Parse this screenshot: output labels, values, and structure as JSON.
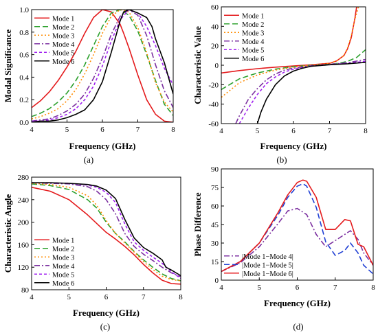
{
  "chart_data": [
    {
      "type": "line",
      "panel_label": "(a)",
      "xlabel": "Frequency (GHz)",
      "ylabel": "Modal Significance",
      "xlim": [
        4,
        8
      ],
      "ylim": [
        0,
        1.0
      ],
      "xticks": [
        4,
        5,
        6,
        7,
        8
      ],
      "yticks": [
        0.0,
        0.2,
        0.4,
        0.6,
        0.8,
        1.0
      ],
      "ytick_labels": [
        "0.0",
        "0.2",
        "0.4",
        "0.6",
        "0.8",
        "1.0"
      ],
      "legend_position": "top-left",
      "series": [
        {
          "name": "Mode 1",
          "color": "#e41a1c",
          "dash": "solid",
          "x": [
            4,
            4.25,
            4.5,
            4.75,
            5,
            5.25,
            5.5,
            5.75,
            6,
            6.25,
            6.5,
            6.6,
            6.75,
            7,
            7.25,
            7.5,
            7.75,
            8
          ],
          "y": [
            0.13,
            0.19,
            0.27,
            0.37,
            0.49,
            0.63,
            0.79,
            0.93,
            1.0,
            0.98,
            0.87,
            0.79,
            0.66,
            0.42,
            0.2,
            0.07,
            0.01,
            0.0
          ]
        },
        {
          "name": "Mode 2",
          "color": "#2ca02c",
          "dash": "8,4",
          "x": [
            4,
            4.25,
            4.5,
            4.75,
            5,
            5.25,
            5.5,
            5.75,
            6,
            6.25,
            6.5,
            6.75,
            7,
            7.25,
            7.5,
            7.75,
            8
          ],
          "y": [
            0.05,
            0.08,
            0.12,
            0.18,
            0.26,
            0.37,
            0.51,
            0.68,
            0.85,
            0.97,
            1.0,
            0.95,
            0.81,
            0.6,
            0.37,
            0.16,
            0.06
          ]
        },
        {
          "name": "Mode 3",
          "color": "#ff8c00",
          "dash": "2,3",
          "x": [
            4,
            4.25,
            4.5,
            4.75,
            5,
            5.25,
            5.5,
            5.75,
            6,
            6.25,
            6.5,
            6.75,
            7,
            7.25,
            7.5,
            7.75,
            8
          ],
          "y": [
            0.03,
            0.05,
            0.08,
            0.12,
            0.19,
            0.29,
            0.43,
            0.6,
            0.79,
            0.94,
            1.0,
            0.98,
            0.84,
            0.62,
            0.35,
            0.18,
            0.09
          ]
        },
        {
          "name": "Mode 4",
          "color": "#7b2fa0",
          "dash": "8,3,2,3",
          "x": [
            4,
            4.25,
            4.5,
            4.75,
            5,
            5.25,
            5.5,
            5.75,
            6,
            6.25,
            6.5,
            6.75,
            7,
            7.25,
            7.5,
            7.75,
            8
          ],
          "y": [
            0.01,
            0.02,
            0.03,
            0.06,
            0.1,
            0.16,
            0.25,
            0.39,
            0.57,
            0.78,
            0.94,
            1.0,
            0.95,
            0.77,
            0.51,
            0.28,
            0.13
          ]
        },
        {
          "name": "Mode 5",
          "color": "#a020f0",
          "dash": "4,3",
          "x": [
            4,
            4.25,
            4.5,
            4.75,
            5,
            5.25,
            5.5,
            5.75,
            6,
            6.25,
            6.5,
            6.75,
            7,
            7.25,
            7.5,
            7.75,
            8
          ],
          "y": [
            0.01,
            0.01,
            0.02,
            0.04,
            0.07,
            0.12,
            0.2,
            0.32,
            0.5,
            0.72,
            0.91,
            1.0,
            0.97,
            0.85,
            0.68,
            0.48,
            0.33
          ]
        },
        {
          "name": "Mode 6",
          "color": "#000000",
          "dash": "solid",
          "x": [
            4,
            4.25,
            4.5,
            4.75,
            5,
            5.25,
            5.5,
            5.75,
            6,
            6.25,
            6.5,
            6.6,
            6.75,
            7,
            7.25,
            7.4,
            7.5,
            7.75,
            8
          ],
          "y": [
            0.0,
            0.01,
            0.01,
            0.02,
            0.04,
            0.07,
            0.11,
            0.2,
            0.36,
            0.62,
            0.9,
            0.98,
            1.0,
            0.97,
            0.93,
            0.85,
            0.74,
            0.53,
            0.25
          ]
        }
      ]
    },
    {
      "type": "line",
      "panel_label": "(b)",
      "xlabel": "Frequency (GHz)",
      "ylabel": "Characteristic Value",
      "xlim": [
        4,
        8
      ],
      "ylim": [
        -60,
        60
      ],
      "xticks": [
        4,
        5,
        6,
        7,
        8
      ],
      "yticks": [
        -60,
        -40,
        -20,
        0,
        20,
        40,
        60
      ],
      "ytick_labels": [
        "-60",
        "-40",
        "-20",
        "0",
        "20",
        "40",
        "60"
      ],
      "legend_position": "top-left",
      "series": [
        {
          "name": "Mode 1",
          "color": "#e41a1c",
          "dash": "solid",
          "x": [
            4,
            4.5,
            5,
            5.5,
            6,
            6.5,
            7,
            7.2,
            7.4,
            7.5,
            7.6,
            7.7,
            7.75
          ],
          "y": [
            -8,
            -5.5,
            -3.5,
            -2,
            -0.8,
            0.5,
            2,
            4.5,
            10,
            17,
            28,
            48,
            60
          ]
        },
        {
          "name": "Mode 2",
          "color": "#2ca02c",
          "dash": "8,4",
          "x": [
            4,
            4.5,
            5,
            5.5,
            6,
            6.5,
            7,
            7.25,
            7.5,
            7.75,
            8
          ],
          "y": [
            -25,
            -14,
            -8,
            -4,
            -1.5,
            0,
            1,
            2,
            4,
            8,
            16
          ]
        },
        {
          "name": "Mode 3",
          "color": "#ff8c00",
          "dash": "2,3",
          "x": [
            4,
            4.5,
            5,
            5.5,
            6,
            6.5,
            7,
            7.2,
            7.4,
            7.5,
            7.6,
            7.7,
            7.8
          ],
          "y": [
            -33,
            -18,
            -10,
            -5,
            -2,
            0,
            2,
            4.5,
            10,
            18,
            30,
            47,
            60
          ]
        },
        {
          "name": "Mode 4",
          "color": "#7b2fa0",
          "dash": "8,3,2,3",
          "x": [
            4.4,
            4.5,
            4.75,
            5,
            5.25,
            5.5,
            5.75,
            6,
            6.5,
            7,
            7.5,
            8
          ],
          "y": [
            -60,
            -52,
            -35,
            -24,
            -15,
            -9,
            -5,
            -3,
            -0.5,
            1,
            2.5,
            6
          ]
        },
        {
          "name": "Mode 5",
          "color": "#a020f0",
          "dash": "4,3",
          "x": [
            4.5,
            4.75,
            5,
            5.25,
            5.5,
            5.75,
            6,
            6.5,
            7,
            7.5,
            8
          ],
          "y": [
            -60,
            -44,
            -30,
            -19,
            -12,
            -7,
            -4,
            -1,
            0.5,
            2,
            4
          ]
        },
        {
          "name": "Mode 6",
          "color": "#000000",
          "dash": "solid",
          "x": [
            5,
            5.1,
            5.25,
            5.5,
            5.75,
            6,
            6.25,
            6.5,
            7,
            7.5,
            8
          ],
          "y": [
            -60,
            -48,
            -35,
            -20,
            -11,
            -6,
            -3,
            -1,
            0.5,
            1.5,
            3
          ]
        }
      ]
    },
    {
      "type": "line",
      "panel_label": "(c)",
      "xlabel": "Frequency (GHz)",
      "ylabel": "Characteristic Angle",
      "xlim": [
        4,
        8
      ],
      "ylim": [
        80,
        280
      ],
      "xticks": [
        4,
        5,
        6,
        7,
        8
      ],
      "yticks": [
        80,
        120,
        160,
        200,
        240,
        280
      ],
      "ytick_labels": [
        "80",
        "120",
        "160",
        "200",
        "240",
        "280"
      ],
      "legend_position": "bottom-left",
      "series": [
        {
          "name": "Mode 1",
          "color": "#e41a1c",
          "dash": "solid",
          "x": [
            4,
            4.5,
            5,
            5.5,
            6,
            6.25,
            6.5,
            6.75,
            7,
            7.25,
            7.5,
            7.75,
            8
          ],
          "y": [
            262,
            255,
            240,
            213,
            182,
            170,
            157,
            142,
            125,
            110,
            97,
            91,
            90
          ]
        },
        {
          "name": "Mode 2",
          "color": "#2ca02c",
          "dash": "8,4",
          "x": [
            4,
            4.5,
            5,
            5.5,
            5.75,
            6,
            6.25,
            6.5,
            6.75,
            7,
            7.25,
            7.5,
            7.75,
            8
          ],
          "y": [
            268,
            265,
            258,
            240,
            225,
            200,
            180,
            165,
            148,
            133,
            120,
            108,
            100,
            96
          ]
        },
        {
          "name": "Mode 3",
          "color": "#ff8c00",
          "dash": "2,3",
          "x": [
            4,
            4.5,
            5,
            5.5,
            5.75,
            6,
            6.25,
            6.5,
            6.75,
            7,
            7.25,
            7.5,
            7.75,
            8
          ],
          "y": [
            269,
            267,
            262,
            247,
            230,
            203,
            180,
            163,
            147,
            130,
            116,
            104,
            98,
            96
          ]
        },
        {
          "name": "Mode 4",
          "color": "#7b2fa0",
          "dash": "8,3,2,3",
          "x": [
            4,
            4.5,
            5,
            5.5,
            5.75,
            6,
            6.25,
            6.5,
            6.75,
            7,
            7.25,
            7.5,
            7.75,
            8
          ],
          "y": [
            270,
            269,
            268,
            263,
            255,
            240,
            215,
            180,
            157,
            143,
            132,
            120,
            110,
            103
          ]
        },
        {
          "name": "Mode 5",
          "color": "#a020f0",
          "dash": "4,3",
          "x": [
            4,
            4.5,
            5,
            5.5,
            5.75,
            6,
            6.25,
            6.5,
            6.75,
            7,
            7.25,
            7.5,
            7.75,
            8
          ],
          "y": [
            270,
            270,
            269,
            266,
            262,
            253,
            235,
            197,
            165,
            150,
            138,
            127,
            112,
            100
          ]
        },
        {
          "name": "Mode 6",
          "color": "#000000",
          "dash": "solid",
          "x": [
            4,
            4.5,
            5,
            5.5,
            5.75,
            6,
            6.25,
            6.5,
            6.75,
            7,
            7.25,
            7.5,
            7.6,
            7.75,
            8
          ],
          "y": [
            270,
            270,
            269,
            267,
            264,
            257,
            242,
            205,
            172,
            155,
            145,
            133,
            120,
            115,
            105
          ]
        }
      ]
    },
    {
      "type": "line",
      "panel_label": "(d)",
      "xlabel": "Frequency (GHz)",
      "ylabel": "Phase Difference",
      "xlim": [
        4,
        8
      ],
      "ylim": [
        0,
        90
      ],
      "xticks": [
        4,
        5,
        6,
        7,
        8
      ],
      "yticks": [
        0,
        15,
        30,
        45,
        60,
        75,
        90
      ],
      "ytick_labels": [
        "0",
        "15",
        "30",
        "45",
        "60",
        "75",
        "90"
      ],
      "legend_position": "bottom-left",
      "series": [
        {
          "name": "|Mode 1−Mode 4|",
          "color": "#7b2fa0",
          "dash": "8,3,2,3",
          "x": [
            4,
            4.5,
            5,
            5.5,
            5.75,
            6,
            6.25,
            6.5,
            6.75,
            7,
            7.25,
            7.4,
            7.6,
            7.75,
            8
          ],
          "y": [
            7,
            14,
            27,
            46,
            56,
            58,
            53,
            37,
            27,
            32,
            37,
            40,
            33,
            22,
            12
          ]
        },
        {
          "name": "|Mode 1−Mode 5|",
          "color": "#1f3fd4",
          "dash": "8,4",
          "x": [
            4,
            4.5,
            5,
            5.5,
            5.75,
            6,
            6.15,
            6.25,
            6.5,
            6.75,
            7,
            7.25,
            7.4,
            7.6,
            7.75,
            8
          ],
          "y": [
            7,
            15,
            30,
            53,
            67,
            76,
            78,
            76,
            59,
            31,
            20,
            24,
            30,
            22,
            12,
            5
          ]
        },
        {
          "name": "|Mode 1−Mode 6|",
          "color": "#e41a1c",
          "dash": "solid",
          "x": [
            4,
            4.5,
            5,
            5.5,
            5.75,
            6,
            6.15,
            6.25,
            6.5,
            6.75,
            7,
            7.25,
            7.4,
            7.6,
            7.75,
            8
          ],
          "y": [
            7,
            15,
            30,
            55,
            69,
            79,
            81,
            80,
            67,
            41,
            41,
            49,
            48,
            29,
            27,
            12
          ]
        }
      ]
    }
  ]
}
